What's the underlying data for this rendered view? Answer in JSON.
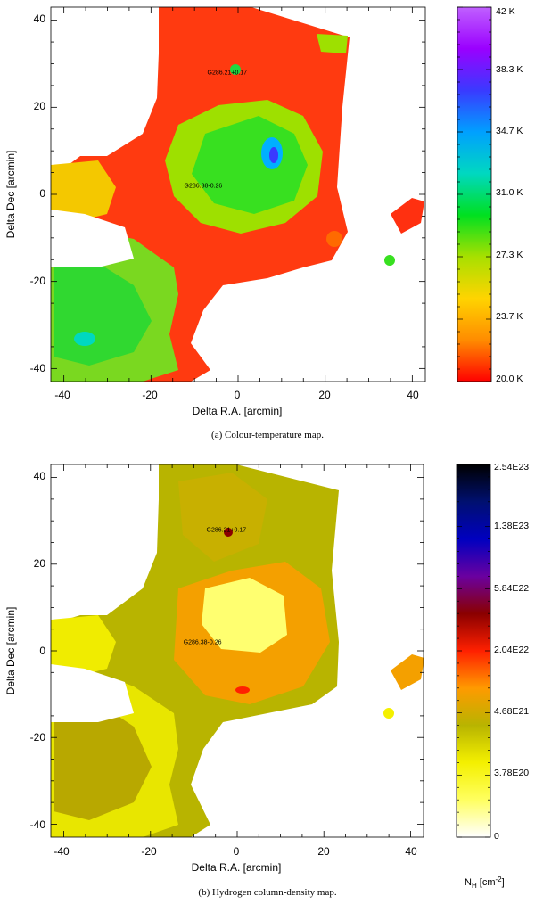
{
  "chart_data": [
    {
      "type": "heatmap",
      "caption": "(a)  Colour-temperature map.",
      "xlabel": "Delta R.A. [arcmin]",
      "ylabel": "Delta Dec [arcmin]",
      "xlim": [
        -43,
        43
      ],
      "ylim": [
        -43,
        43
      ],
      "x_ticks": [
        "-40",
        "-20",
        "0",
        "20",
        "40"
      ],
      "y_ticks": [
        "-40",
        "-20",
        "0",
        "20",
        "40"
      ],
      "colorbar": {
        "labels": [
          "42 K",
          "38.3 K",
          "34.7 K",
          "31.0 K",
          "27.3 K",
          "23.7 K",
          "20.0 K"
        ],
        "colors": [
          "#ff0000",
          "#ff8c00",
          "#ffd400",
          "#a8e000",
          "#00e020",
          "#00d8c0",
          "#00a0ff",
          "#3a3aff",
          "#9a00ff",
          "#c060ff"
        ],
        "title": ""
      },
      "sources": [
        {
          "label": "G286.21+0.17",
          "x": -2.5,
          "y": 27.5
        },
        {
          "label": "G286.38-0.26",
          "x": -8,
          "y": 1.5
        }
      ]
    },
    {
      "type": "heatmap",
      "caption": "(b)  Hydrogen column-density map.",
      "xlabel": "Delta R.A. [arcmin]",
      "ylabel": "Delta Dec [arcmin]",
      "xlim": [
        -43,
        43
      ],
      "ylim": [
        -43,
        43
      ],
      "x_ticks": [
        "-40",
        "-20",
        "0",
        "20",
        "40"
      ],
      "y_ticks": [
        "-40",
        "-20",
        "0",
        "20",
        "40"
      ],
      "colorbar": {
        "labels": [
          "2.54E23",
          "1.38E23",
          "5.84E22",
          "2.04E22",
          "4.68E21",
          "3.78E20",
          "0"
        ],
        "colors": [
          "#ffffff",
          "#ffff60",
          "#f4f000",
          "#b8b400",
          "#ff9a00",
          "#ff2000",
          "#8a0000",
          "#6a00a0",
          "#0000c0",
          "#001070",
          "#000000"
        ],
        "title_main": "N",
        "title_sub": "H",
        "title_unit": " [cm",
        "title_exp": "-2",
        "title_close": "]"
      },
      "sources": [
        {
          "label": "G286.21+0.17",
          "x": -2.5,
          "y": 27.5
        },
        {
          "label": "G286.38-0.26",
          "x": -8,
          "y": 1.5
        }
      ]
    }
  ]
}
